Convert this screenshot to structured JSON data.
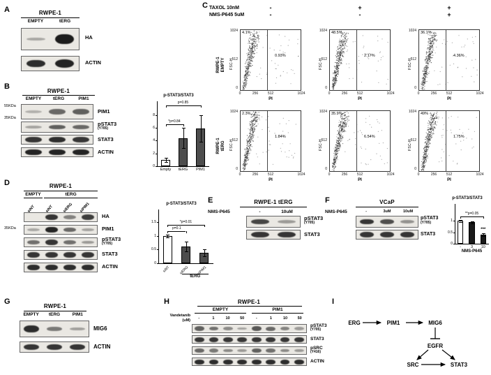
{
  "panel_a": {
    "label": "A",
    "title": "RWPE-1",
    "lanes": [
      "EMPTY",
      "tERG"
    ],
    "blots": [
      {
        "name": "HA",
        "bands": [
          0.12,
          0.95
        ]
      },
      {
        "name": "ACTIN",
        "bands": [
          0.85,
          0.9
        ]
      }
    ]
  },
  "panel_b": {
    "label": "B",
    "title": "RWPE-1",
    "lanes": [
      "EMPTY",
      "tERG",
      "PIM1"
    ],
    "mw": [
      "55KDa",
      "35KDa"
    ],
    "blots": [
      {
        "name": "PIM1",
        "bands": [
          0.08,
          0.5,
          0.55
        ]
      },
      {
        "name": "pSTAT3",
        "sub": "(Y705)",
        "bands": [
          0.15,
          0.55,
          0.5
        ]
      },
      {
        "name": "STAT3",
        "bands": [
          0.8,
          0.85,
          0.8
        ]
      },
      {
        "name": "ACTIN",
        "bands": [
          0.9,
          0.9,
          0.9
        ]
      }
    ],
    "chart": {
      "type": "bar",
      "title": "p-STAT3/STAT3",
      "categories": [
        "Empty",
        "tERG",
        "PIM1"
      ],
      "values": [
        1,
        4.4,
        5.9
      ],
      "errors": [
        0.3,
        1.6,
        2.1
      ],
      "fills": [
        "#ffffff",
        "#4d4d4d",
        "#4d4d4d"
      ],
      "ylim": [
        0,
        8
      ],
      "yticks": [
        0,
        2,
        4,
        6,
        8
      ],
      "brackets": [
        {
          "from": 0,
          "to": 1,
          "label": "*p=0.84",
          "level": 0
        },
        {
          "from": 0,
          "to": 2,
          "label": "p=0.85",
          "level": 1
        }
      ]
    }
  },
  "panel_c": {
    "label": "C",
    "treatments": [
      {
        "name": "TAXOL 10nM",
        "signs": [
          "-",
          "+",
          "+"
        ]
      },
      {
        "name": "NMS-P645 5uM",
        "signs": [
          "-",
          "-",
          "+"
        ]
      }
    ],
    "axes": {
      "y_label": "FSC-H",
      "x_label": "PI",
      "y_ticks": [
        "1024",
        "512",
        "0"
      ],
      "x_ticks": [
        "0",
        "256",
        "512",
        "1024"
      ]
    },
    "rows": [
      {
        "label_line1": "RWPE-1",
        "label_line2": "EMPTY",
        "plots": [
          {
            "left_pct": "4.1%",
            "right_pct": "0.93%"
          },
          {
            "left_pct": "48.5%",
            "right_pct": "2.17%"
          },
          {
            "left_pct": "36.1%",
            "right_pct": "4.36%"
          }
        ]
      },
      {
        "label_line1": "RWPE-1",
        "label_line2": "tERG",
        "plots": [
          {
            "left_pct": "2.3%",
            "right_pct": "1.84%"
          },
          {
            "left_pct": "35.9%",
            "right_pct": "6.54%"
          },
          {
            "left_pct": "49%",
            "right_pct": "1.75%"
          }
        ]
      }
    ]
  },
  "panel_d": {
    "label": "D",
    "title": "RWPE-1",
    "groups": [
      {
        "name": "EMPTY"
      },
      {
        "name": "tERG"
      }
    ],
    "lanes": [
      "siNT",
      "siNT",
      "siERG",
      "siPIM1"
    ],
    "mw": [
      "35KDa"
    ],
    "blots": [
      {
        "name": "HA",
        "bands": [
          0,
          0.8,
          0.35,
          0.75
        ]
      },
      {
        "name": "PIM1",
        "bands": [
          0.12,
          0.9,
          0.5,
          0.15
        ]
      },
      {
        "name": "pSTAT3",
        "sub": "(Y705)",
        "bands": [
          0.45,
          0.8,
          0.45,
          0.2
        ]
      },
      {
        "name": "STAT3",
        "bands": [
          0.8,
          0.8,
          0.8,
          0.8
        ]
      },
      {
        "name": "ACTIN",
        "bands": [
          0.85,
          0.85,
          0.85,
          0.85
        ]
      }
    ],
    "chart": {
      "type": "bar",
      "title": "p-STAT3/STAT3",
      "categories": [
        "siNT",
        "siERG",
        "siPIM1"
      ],
      "values": [
        1,
        0.62,
        0.38
      ],
      "errors": [
        0.05,
        0.18,
        0.12
      ],
      "fills": [
        "#ffffff",
        "#4d4d4d",
        "#4d4d4d"
      ],
      "ylim": [
        0,
        1.5
      ],
      "yticks": [
        0,
        0.5,
        1,
        1.5
      ],
      "brackets": [
        {
          "from": 0,
          "to": 1,
          "label": "p=0.1",
          "level": 0
        },
        {
          "from": 0,
          "to": 2,
          "label": "*p=0.01",
          "level": 1
        }
      ],
      "group": {
        "from": 1,
        "to": 2,
        "label": "tERG"
      },
      "rotate_xticks": true
    }
  },
  "panel_e": {
    "label": "E",
    "title": "RWPE-1 tERG",
    "drug": "NMS-P645",
    "lanes": [
      "-",
      "10uM"
    ],
    "blots": [
      {
        "name": "pSTAT3",
        "sub": "(Y705)",
        "bands": [
          0.7,
          0.2
        ]
      },
      {
        "name": "STAT3",
        "bands": [
          0.8,
          0.8
        ]
      }
    ]
  },
  "panel_f": {
    "label": "F",
    "title": "VCaP",
    "drug": "NMS-P645",
    "lanes": [
      "-",
      "3uM",
      "10uM"
    ],
    "blots": [
      {
        "name": "pSTAT3",
        "sub": "(Y705)",
        "bands": [
          0.8,
          0.65,
          0.25
        ]
      },
      {
        "name": "STAT3",
        "bands": [
          0.8,
          0.8,
          0.8
        ]
      }
    ],
    "chart": {
      "type": "bar",
      "title": "p-STAT3/STAT3",
      "categories": [
        "-",
        "3",
        "10"
      ],
      "values": [
        1,
        0.93,
        0.4
      ],
      "errors": [
        0.04,
        0.06,
        0.05
      ],
      "fills": [
        "#ffffff",
        "#1a1a1a",
        "#1a1a1a"
      ],
      "ylim": [
        0,
        1.25
      ],
      "yticks": [
        0,
        0.5,
        1
      ],
      "brackets": [
        {
          "from": 0,
          "to": 2,
          "label": "**p=0.05",
          "level": 0
        }
      ],
      "annotations": [
        "",
        "",
        "***"
      ],
      "xlabel": "NMS-P645"
    }
  },
  "panel_g": {
    "label": "G",
    "title": "RWPE-1",
    "lanes": [
      "EMPTY",
      "tERG",
      "PIM1"
    ],
    "blots": [
      {
        "name": "MIG6",
        "bands": [
          0.85,
          0.4,
          0.18
        ]
      },
      {
        "name": "ACTIN",
        "bands": [
          0.8,
          0.8,
          0.8
        ]
      }
    ]
  },
  "panel_h": {
    "label": "H",
    "title": "RWPE-1",
    "groups": [
      "EMPTY",
      "PIM1"
    ],
    "drug_line1": "Vandetanib",
    "drug_line2": "(uM)",
    "doses": [
      "-",
      "1",
      "10",
      "50",
      "-",
      "1",
      "10",
      "50"
    ],
    "blots": [
      {
        "name": "pSTAT3",
        "sub": "(Y705)",
        "bands": [
          0.55,
          0.45,
          0.3,
          0.15,
          0.6,
          0.5,
          0.35,
          0.2
        ]
      },
      {
        "name": "STAT3",
        "bands": [
          0.8,
          0.8,
          0.8,
          0.8,
          0.8,
          0.8,
          0.8,
          0.8
        ]
      },
      {
        "name": "pSRC",
        "sub": "(Y416)",
        "bands": [
          0.5,
          0.4,
          0.3,
          0.2,
          0.55,
          0.45,
          0.3,
          0.2
        ]
      },
      {
        "name": "ACTIN",
        "bands": [
          0.85,
          0.85,
          0.85,
          0.85,
          0.85,
          0.85,
          0.85,
          0.85
        ]
      }
    ]
  },
  "panel_i": {
    "label": "I",
    "nodes": {
      "erg": "ERG",
      "pim1": "PIM1",
      "mig6": "MIG6",
      "egfr": "EGFR",
      "src": "SRC",
      "stat3": "STAT3"
    }
  }
}
